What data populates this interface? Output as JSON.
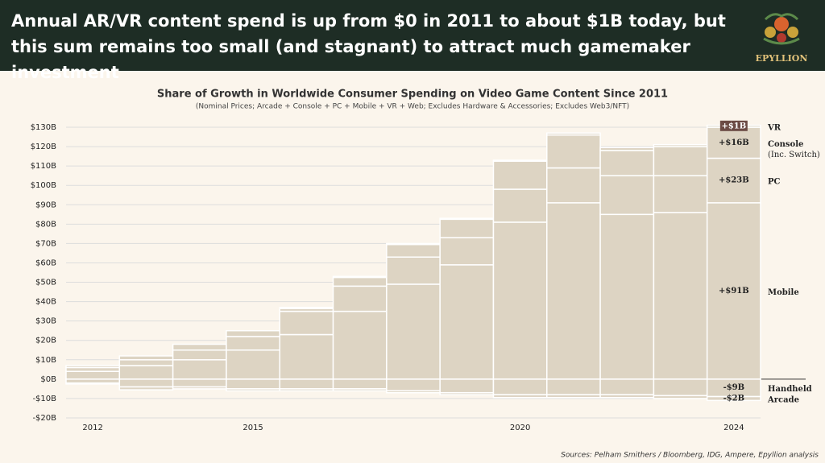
{
  "header": {
    "title": "Annual AR/VR content spend is up from $0 in 2011 to about $1B today, but this sum remains too small (and stagnant) to attract much gamemaker investment",
    "logo": "EPYLLION"
  },
  "chart_data": {
    "type": "stacked-bar",
    "title": "Share of Growth in Worldwide Consumer Spending on Video Game Content Since 2011",
    "subtitle": "(Nominal Prices; Arcade + Console + PC + Mobile + VR + Web; Excludes Hardware & Accessories; Excludes Web3/NFT)",
    "categories": [
      "2012",
      null,
      null,
      "2015",
      null,
      null,
      null,
      null,
      "2020",
      null,
      null,
      null,
      "2024"
    ],
    "series": [
      {
        "name": "Mobile",
        "color": "#ddd4c3",
        "values": [
          4,
          7,
          10,
          15,
          23,
          35,
          49,
          59,
          81,
          91,
          85,
          86,
          91
        ],
        "value_labels": [
          null,
          null,
          null,
          null,
          null,
          null,
          null,
          null,
          null,
          null,
          null,
          null,
          "+$91B"
        ]
      },
      {
        "name": "PC",
        "color": "#ddd4c3",
        "values": [
          2,
          3,
          5,
          7,
          12,
          13,
          14,
          14,
          17,
          18,
          20,
          19,
          23
        ],
        "value_labels": [
          null,
          null,
          null,
          null,
          null,
          null,
          null,
          null,
          null,
          null,
          null,
          null,
          "+$23B"
        ]
      },
      {
        "name": "Console",
        "note": "(Inc. Switch)",
        "color": "#ddd4c3",
        "values": [
          1,
          2,
          3,
          3,
          1.5,
          4.5,
          6.5,
          9.5,
          14.5,
          17,
          13,
          15,
          16
        ],
        "value_labels": [
          null,
          null,
          null,
          null,
          null,
          null,
          null,
          null,
          null,
          null,
          null,
          null,
          "+$16B"
        ]
      },
      {
        "name": "VR",
        "color": "#ddd4c3",
        "label_background": "#6b4a44",
        "values": [
          0,
          0,
          0,
          0,
          0.5,
          0.5,
          0.5,
          0.5,
          0.5,
          1,
          1.5,
          1,
          1
        ],
        "value_labels": [
          null,
          null,
          null,
          null,
          null,
          null,
          null,
          null,
          null,
          null,
          null,
          null,
          "+$1B"
        ]
      },
      {
        "name": "Handheld",
        "color": "#ddd4c3",
        "values": [
          -2,
          -4,
          -4,
          -5,
          -5,
          -5,
          -6,
          -7,
          -8,
          -8,
          -8,
          -8.5,
          -9
        ],
        "value_labels": [
          null,
          null,
          null,
          null,
          null,
          null,
          null,
          null,
          null,
          null,
          null,
          null,
          "-$9B"
        ]
      },
      {
        "name": "Arcade",
        "color": "#ddd4c3",
        "values": [
          -0.5,
          -1.5,
          -1,
          -1,
          -1,
          -1,
          -1,
          -1,
          -1.5,
          -1.5,
          -1.5,
          -1.5,
          -2
        ],
        "value_labels": [
          null,
          null,
          null,
          null,
          null,
          null,
          null,
          null,
          null,
          null,
          null,
          null,
          "-$2B"
        ]
      }
    ],
    "ylim": [
      -20,
      130
    ],
    "yticks": [
      {
        "value": -20,
        "label": "-$20B"
      },
      {
        "value": -10,
        "label": "-$10B"
      },
      {
        "value": 0,
        "label": "$0B"
      },
      {
        "value": 10,
        "label": "$10B"
      },
      {
        "value": 20,
        "label": "$20B"
      },
      {
        "value": 30,
        "label": "$30B"
      },
      {
        "value": 40,
        "label": "$40B"
      },
      {
        "value": 50,
        "label": "$50B"
      },
      {
        "value": 60,
        "label": "$60B"
      },
      {
        "value": 70,
        "label": "$70B"
      },
      {
        "value": 80,
        "label": "$80B"
      },
      {
        "value": 90,
        "label": "$90B"
      },
      {
        "value": 100,
        "label": "$100B"
      },
      {
        "value": 110,
        "label": "$110B"
      },
      {
        "value": 120,
        "label": "$120B"
      },
      {
        "value": 130,
        "label": "$130B"
      }
    ],
    "grid": true
  },
  "footer": {
    "source": "Sources: Pelham Smithers / Bloomberg, IDG, Ampere, Epyllion analysis"
  }
}
